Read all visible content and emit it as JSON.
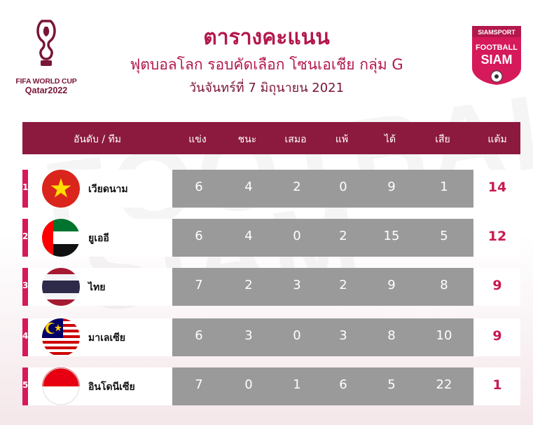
{
  "header": {
    "title": "ตารางคะแนน",
    "subtitle": "ฟุตบอลโลก รอบคัดเลือก โซนเอเชีย กลุ่ม G",
    "date": "วันจันทร์ที่ 7 มิถุนายน 2021"
  },
  "logos": {
    "world_cup_line1": "FIFA WORLD CUP",
    "world_cup_line2": "Qatar2022",
    "siam_top": "SIAMSPORT",
    "siam_mid": "FOOTBALL",
    "siam_bottom": "SIAM"
  },
  "table": {
    "columns": [
      "อันดับ / ทีม",
      "แข่ง",
      "ชนะ",
      "เสมอ",
      "แพ้",
      "ได้",
      "เสีย",
      "แต้ม"
    ],
    "rows": [
      {
        "rank": "1",
        "team": "เวียดนาม",
        "flag": "vietnam-flag",
        "played": "6",
        "won": "4",
        "drawn": "2",
        "lost": "0",
        "gf": "9",
        "ga": "1",
        "pts": "14"
      },
      {
        "rank": "2",
        "team": "ยูเออี",
        "flag": "uae-flag",
        "played": "6",
        "won": "4",
        "drawn": "0",
        "lost": "2",
        "gf": "15",
        "ga": "5",
        "pts": "12"
      },
      {
        "rank": "3",
        "team": "ไทย",
        "flag": "thailand-flag",
        "played": "7",
        "won": "2",
        "drawn": "3",
        "lost": "2",
        "gf": "9",
        "ga": "8",
        "pts": "9"
      },
      {
        "rank": "4",
        "team": "มาเลเซีย",
        "flag": "malaysia-flag",
        "played": "6",
        "won": "3",
        "drawn": "0",
        "lost": "3",
        "gf": "8",
        "ga": "10",
        "pts": "9"
      },
      {
        "rank": "5",
        "team": "อินโดนีเซีย",
        "flag": "indonesia-flag",
        "played": "7",
        "won": "0",
        "drawn": "1",
        "lost": "6",
        "gf": "5",
        "ga": "22",
        "pts": "1"
      }
    ]
  },
  "colors": {
    "accent": "#b3174c",
    "header_bg": "#8c1a3f",
    "rank_bar": "#d6195b",
    "stat_bg": "#9a9a9a"
  }
}
